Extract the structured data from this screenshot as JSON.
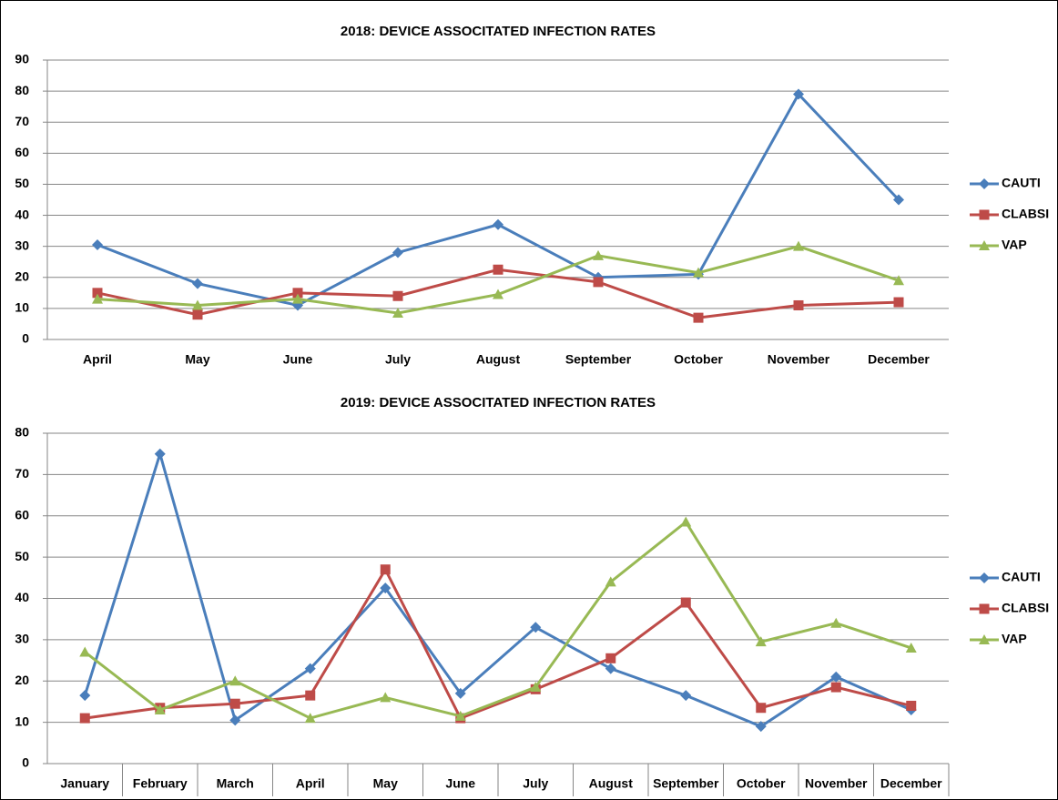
{
  "chart_data": [
    {
      "type": "line",
      "title": "2018: DEVICE ASSOCITATED INFECTION RATES",
      "categories": [
        "April",
        "May",
        "June",
        "July",
        "August",
        "September",
        "October",
        "November",
        "December"
      ],
      "series": [
        {
          "name": "CAUTI",
          "color": "#4a7ebb",
          "marker": "diamond",
          "values": [
            30.5,
            18,
            11,
            28,
            37,
            20,
            21,
            79,
            45
          ]
        },
        {
          "name": "CLABSI",
          "color": "#be4b48",
          "marker": "square",
          "values": [
            15,
            8,
            15,
            14,
            22.5,
            18.5,
            7,
            11,
            12
          ]
        },
        {
          "name": "VAP",
          "color": "#98b954",
          "marker": "triangle",
          "values": [
            13,
            11,
            13,
            8.5,
            14.5,
            27,
            21.5,
            30,
            19
          ]
        }
      ],
      "ylim": [
        0,
        90
      ],
      "yticks": [
        0,
        10,
        20,
        30,
        40,
        50,
        60,
        70,
        80,
        90
      ],
      "grid": true,
      "legend": "right"
    },
    {
      "type": "line",
      "title": "2019: DEVICE ASSOCITATED INFECTION RATES",
      "categories": [
        "January",
        "February",
        "March",
        "April",
        "May",
        "June",
        "July",
        "August",
        "September",
        "October",
        "November",
        "December"
      ],
      "series": [
        {
          "name": "CAUTI",
          "color": "#4a7ebb",
          "marker": "diamond",
          "values": [
            16.5,
            75,
            10.5,
            23,
            42.5,
            17,
            33,
            23,
            16.5,
            9,
            21,
            13
          ]
        },
        {
          "name": "CLABSI",
          "color": "#be4b48",
          "marker": "square",
          "values": [
            11,
            13.5,
            14.5,
            16.5,
            47,
            11,
            18,
            25.5,
            39,
            13.5,
            18.5,
            14
          ]
        },
        {
          "name": "VAP",
          "color": "#98b954",
          "marker": "triangle",
          "values": [
            27,
            13,
            20,
            11,
            16,
            11.5,
            18.5,
            44,
            58.5,
            29.5,
            34,
            28
          ]
        }
      ],
      "ylim": [
        0,
        80
      ],
      "yticks": [
        0,
        10,
        20,
        30,
        40,
        50,
        60,
        70,
        80
      ],
      "grid": true,
      "legend": "right"
    }
  ]
}
